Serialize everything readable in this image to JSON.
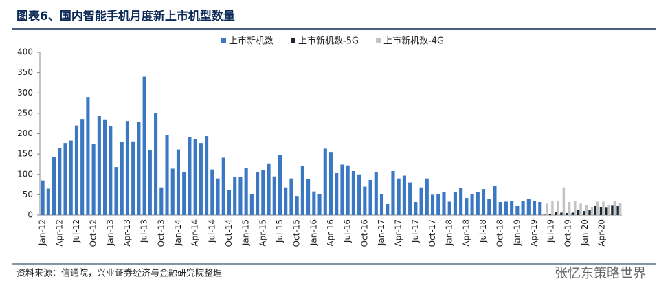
{
  "chart_data": {
    "type": "bar",
    "title": "图表6、国内智能手机月度新上市机型数量",
    "source": "资料来源：信通院，兴业证券经济与金融研究院整理",
    "watermark": "张忆东策略世界",
    "categories": [
      "Jan-12",
      null,
      null,
      "Apr-12",
      null,
      null,
      "Jul-12",
      null,
      null,
      "Oct-12",
      null,
      null,
      "Jan-13",
      null,
      null,
      "Apr-13",
      null,
      null,
      "Jul-13",
      null,
      null,
      "Oct-13",
      null,
      null,
      "Jan-14",
      null,
      null,
      "Apr-14",
      null,
      null,
      "Jul-14",
      null,
      null,
      "Oct-14",
      null,
      null,
      "Jan-15",
      null,
      null,
      "Apr-15",
      null,
      null,
      "Jul-15",
      null,
      null,
      "Oct-15",
      null,
      null,
      "Jan-16",
      null,
      null,
      "Apr-16",
      null,
      null,
      "Jul-16",
      null,
      null,
      "Oct-16",
      null,
      null,
      "Jan-17",
      null,
      null,
      "Apr-17",
      null,
      null,
      "Jul-17",
      null,
      null,
      "Oct-17",
      null,
      null,
      "Jan-18",
      null,
      null,
      "Apr-18",
      null,
      null,
      "Jul-18",
      null,
      null,
      "Oct-18",
      null,
      null,
      "Jan-19",
      null,
      null,
      "Apr-19",
      null,
      null,
      "Jul-19",
      null,
      null,
      "Oct-19",
      null,
      null,
      "Jan-20",
      null,
      null,
      "Apr-20",
      null,
      null,
      null
    ],
    "series": [
      {
        "name": "上市新机数",
        "color": "#3a78c3",
        "values": [
          85,
          65,
          143,
          165,
          177,
          183,
          220,
          236,
          290,
          175,
          243,
          235,
          218,
          118,
          179,
          231,
          181,
          228,
          340,
          159,
          250,
          68,
          196,
          114,
          161,
          106,
          192,
          186,
          177,
          194,
          112,
          90,
          141,
          62,
          93,
          93,
          115,
          52,
          105,
          110,
          127,
          95,
          148,
          68,
          90,
          47,
          121,
          89,
          58,
          52,
          163,
          155,
          103,
          124,
          122,
          108,
          100,
          70,
          86,
          106,
          52,
          27,
          108,
          90,
          97,
          80,
          32,
          68,
          90,
          50,
          52,
          57,
          33,
          57,
          67,
          42,
          52,
          57,
          64,
          40,
          72,
          32,
          33,
          35,
          22,
          35,
          39,
          34,
          32,
          null,
          null,
          null,
          null,
          null,
          null,
          null,
          null,
          null,
          null,
          null,
          null,
          null,
          null
        ]
      },
      {
        "name": "上市新机数-5G",
        "color": "#1b2838",
        "values": [
          null,
          null,
          null,
          null,
          null,
          null,
          null,
          null,
          null,
          null,
          null,
          null,
          null,
          null,
          null,
          null,
          null,
          null,
          null,
          null,
          null,
          null,
          null,
          null,
          null,
          null,
          null,
          null,
          null,
          null,
          null,
          null,
          null,
          null,
          null,
          null,
          null,
          null,
          null,
          null,
          null,
          null,
          null,
          null,
          null,
          null,
          null,
          null,
          null,
          null,
          null,
          null,
          null,
          null,
          null,
          null,
          null,
          null,
          null,
          null,
          null,
          null,
          null,
          null,
          null,
          null,
          null,
          null,
          null,
          null,
          null,
          null,
          null,
          null,
          null,
          null,
          null,
          null,
          null,
          null,
          null,
          null,
          null,
          null,
          null,
          null,
          null,
          null,
          null,
          1,
          3,
          8,
          6,
          5,
          6,
          13,
          10,
          12,
          22,
          20,
          18,
          23,
          22
        ]
      },
      {
        "name": "上市新机数-4G",
        "color": "#c3c3c3",
        "values": [
          null,
          null,
          null,
          null,
          null,
          null,
          null,
          null,
          null,
          null,
          null,
          null,
          null,
          null,
          null,
          null,
          null,
          null,
          null,
          null,
          null,
          null,
          null,
          null,
          null,
          null,
          null,
          null,
          null,
          null,
          null,
          null,
          null,
          null,
          null,
          null,
          null,
          null,
          null,
          null,
          null,
          null,
          null,
          null,
          null,
          null,
          null,
          null,
          null,
          null,
          null,
          null,
          null,
          null,
          null,
          null,
          null,
          null,
          null,
          null,
          null,
          null,
          null,
          null,
          null,
          null,
          null,
          null,
          null,
          null,
          null,
          null,
          null,
          null,
          null,
          null,
          null,
          null,
          null,
          null,
          null,
          null,
          null,
          null,
          null,
          null,
          null,
          null,
          null,
          28,
          35,
          35,
          68,
          32,
          35,
          28,
          25,
          20,
          33,
          33,
          25,
          35,
          30
        ]
      }
    ],
    "ylim": [
      0,
      400
    ],
    "yticks": [
      0,
      50,
      100,
      150,
      200,
      250,
      300,
      350,
      400
    ],
    "grid": false
  }
}
